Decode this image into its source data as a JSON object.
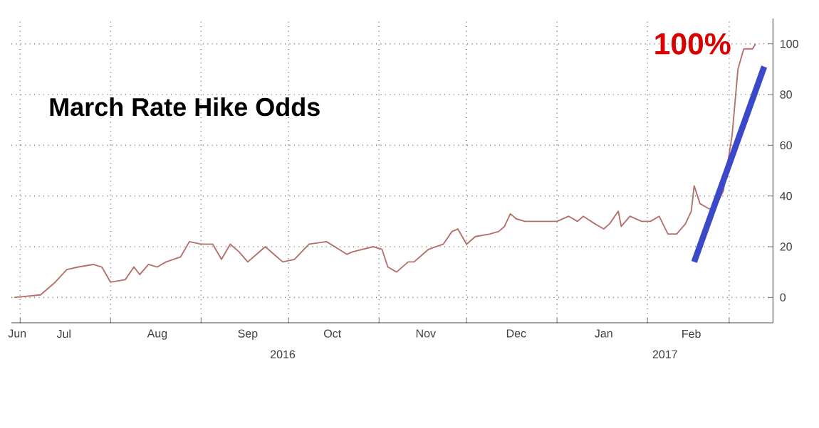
{
  "chart_data": {
    "type": "line",
    "title": "March Rate Hike Odds",
    "x": [
      "2016-06-29",
      "2016-07-08",
      "2016-07-13",
      "2016-07-17",
      "2016-07-21",
      "2016-07-26",
      "2016-07-29",
      "2016-08-01",
      "2016-08-06",
      "2016-08-09",
      "2016-08-11",
      "2016-08-14",
      "2016-08-17",
      "2016-08-20",
      "2016-08-25",
      "2016-08-28",
      "2016-09-01",
      "2016-09-05",
      "2016-09-08",
      "2016-09-11",
      "2016-09-14",
      "2016-09-17",
      "2016-09-20",
      "2016-09-23",
      "2016-09-26",
      "2016-09-29",
      "2016-10-03",
      "2016-10-08",
      "2016-10-14",
      "2016-10-21",
      "2016-10-23",
      "2016-10-30",
      "2016-11-02",
      "2016-11-04",
      "2016-11-07",
      "2016-11-11",
      "2016-11-13",
      "2016-11-18",
      "2016-11-23",
      "2016-11-26",
      "2016-11-28",
      "2016-12-01",
      "2016-12-04",
      "2016-12-09",
      "2016-12-12",
      "2016-12-14",
      "2016-12-16",
      "2016-12-18",
      "2016-12-21",
      "2017-01-01",
      "2017-01-05",
      "2017-01-08",
      "2017-01-10",
      "2017-01-14",
      "2017-01-17",
      "2017-01-19",
      "2017-01-22",
      "2017-01-23",
      "2017-01-26",
      "2017-01-30",
      "2017-02-02",
      "2017-02-05",
      "2017-02-08",
      "2017-02-11",
      "2017-02-14",
      "2017-02-16",
      "2017-02-17",
      "2017-02-19",
      "2017-02-22",
      "2017-02-24",
      "2017-02-27",
      "2017-03-02",
      "2017-03-04",
      "2017-03-06",
      "2017-03-09",
      "2017-03-10"
    ],
    "series": [
      {
        "color": "#b5706a",
        "values": [
          0,
          1,
          6,
          11,
          12,
          13,
          12,
          6,
          7,
          12,
          9,
          13,
          12,
          14,
          16,
          22,
          21,
          21,
          15,
          21,
          18,
          14,
          17,
          20,
          17,
          14,
          15,
          21,
          22,
          17,
          18,
          20,
          19,
          12,
          10,
          14,
          14,
          19,
          21,
          26,
          27,
          21,
          24,
          25,
          26,
          28,
          33,
          31,
          30,
          30,
          32,
          30,
          32,
          29,
          27,
          29,
          34,
          28,
          32,
          30,
          30,
          32,
          25,
          25,
          29,
          34,
          44,
          37,
          35,
          35,
          42,
          64,
          90,
          98,
          98,
          100
        ]
      },
      {
        "type": "line",
        "color": "#3b48c8",
        "x": [
          "2017-02-17",
          "2017-03-13"
        ],
        "values": [
          14,
          91
        ]
      }
    ],
    "xlim": [
      "2016-06-28",
      "2017-03-16"
    ],
    "xticks": [
      {
        "value": "2016-07-01",
        "label": null
      },
      {
        "value": "2016-08-01",
        "label": null
      },
      {
        "value": "2016-09-01",
        "label": null
      },
      {
        "value": "2016-10-01",
        "label": null
      },
      {
        "value": "2016-11-01",
        "label": null
      },
      {
        "value": "2016-12-01",
        "label": null
      },
      {
        "value": "2017-01-01",
        "label": null
      },
      {
        "value": "2017-02-01",
        "label": null
      },
      {
        "value": "2017-03-01",
        "label": null
      },
      {
        "value": "2016-06-30",
        "label": "Jun"
      },
      {
        "value": "2016-07-16",
        "label": "Jul"
      },
      {
        "value": "2016-08-17",
        "label": "Aug"
      },
      {
        "value": "2016-09-17",
        "label": "Sep"
      },
      {
        "value": "2016-10-16",
        "label": "Oct"
      },
      {
        "value": "2016-11-17",
        "label": "Nov"
      },
      {
        "value": "2016-12-18",
        "label": "Dec"
      },
      {
        "value": "2017-01-17",
        "label": "Jan"
      },
      {
        "value": "2017-02-16",
        "label": "Feb"
      }
    ],
    "ylim": [
      -10,
      110
    ],
    "yticks": [
      0,
      20,
      40,
      60,
      80,
      100
    ],
    "grid": true,
    "annotations": [
      {
        "text": "100%",
        "x": "2017-03-10",
        "y": 100
      },
      "2016",
      "2017"
    ]
  }
}
